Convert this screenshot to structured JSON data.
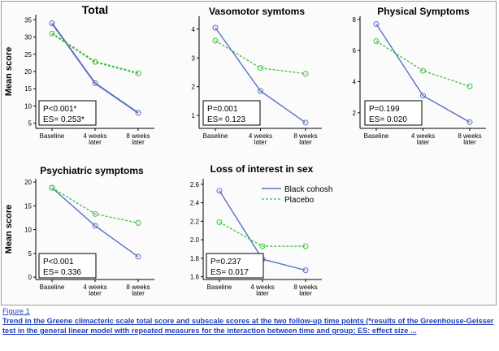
{
  "chart_data": [
    {
      "type": "line",
      "title": "Total",
      "ylabel": "Mean score",
      "categories": [
        "Baseline",
        "4 weeks later",
        "8 weeks later"
      ],
      "yticks": [
        5,
        10,
        15,
        20,
        25,
        30,
        35
      ],
      "ylim": [
        3.5,
        36.5
      ],
      "series": [
        {
          "name": "Black cohosh",
          "values": [
            34.0,
            16.6,
            8.0
          ]
        },
        {
          "name": "Placebo",
          "values": [
            31.0,
            22.8,
            19.5
          ]
        }
      ],
      "stats": [
        "P<0.001*",
        "ES= 0.253*"
      ]
    },
    {
      "type": "line",
      "title": "Vasomotor symtoms",
      "ylabel": "",
      "categories": [
        "Baseline",
        "4 weeks later",
        "8 weeks later"
      ],
      "yticks": [
        1,
        2,
        3,
        4
      ],
      "ylim": [
        0.55,
        4.45
      ],
      "series": [
        {
          "name": "Black cohosh",
          "values": [
            4.05,
            1.85,
            0.75
          ]
        },
        {
          "name": "Placebo",
          "values": [
            3.6,
            2.65,
            2.45
          ]
        }
      ],
      "stats": [
        "P=0.001",
        "ES= 0.123"
      ]
    },
    {
      "type": "line",
      "title": "Physical Symptoms",
      "ylabel": "",
      "categories": [
        "Baseline",
        "4 weeks later",
        "8 weeks later"
      ],
      "yticks": [
        2,
        4,
        6,
        8
      ],
      "ylim": [
        1.0,
        8.2
      ],
      "series": [
        {
          "name": "Black cohosh",
          "values": [
            7.7,
            3.1,
            1.4
          ]
        },
        {
          "name": "Placebo",
          "values": [
            6.6,
            4.7,
            3.7
          ]
        }
      ],
      "stats": [
        "P=0.199",
        "ES= 0.020"
      ]
    },
    {
      "type": "line",
      "title": "Psychiatric  symptoms",
      "ylabel": "Mean score",
      "categories": [
        "Baseline",
        "4 weeks later",
        "8 weeks later"
      ],
      "yticks": [
        0,
        5,
        10,
        15,
        20
      ],
      "ylim": [
        -0.5,
        20.7
      ],
      "series": [
        {
          "name": "Black cohosh",
          "values": [
            18.8,
            10.8,
            4.3
          ]
        },
        {
          "name": "Placebo",
          "values": [
            18.8,
            13.3,
            11.4
          ]
        }
      ],
      "stats": [
        "P<0.001",
        "ES= 0.336"
      ]
    },
    {
      "type": "line",
      "title": "Loss of interest in sex",
      "ylabel": "",
      "categories": [
        "Baseline",
        "4 weeks later",
        "8 weeks later"
      ],
      "yticks": [
        1.6,
        1.8,
        2.0,
        2.2,
        2.4,
        2.6
      ],
      "ytick_labels": [
        "1.6",
        "1.8",
        "2.0",
        "2.2",
        "2.4",
        "2.6"
      ],
      "ylim": [
        1.57,
        2.66
      ],
      "series": [
        {
          "name": "Black cohosh",
          "values": [
            2.53,
            1.79,
            1.67
          ]
        },
        {
          "name": "Placebo",
          "values": [
            2.19,
            1.93,
            1.93
          ]
        }
      ],
      "stats": [
        "P=0.237",
        "ES= 0.017"
      ]
    }
  ],
  "x_tick_lines": [
    [
      "Baseline"
    ],
    [
      "4 weeks",
      "later"
    ],
    [
      "8 weeks",
      "later"
    ]
  ],
  "legend": {
    "black_cohosh": "Black  cohosh",
    "placebo": "Placebo"
  },
  "colors": {
    "black_cohosh": "#5b6fc6",
    "placebo": "#3fbf3f",
    "caption": "#1f3fbf"
  },
  "caption": {
    "label": "Figure 1",
    "text": "Trend in the Greene climacteric scale total score and subscale scores at the two follow-up time points (*results of the Greenhouse-Geisser test in the general linear model with repeated measures for the interaction between time and group; ES: effect size ..."
  }
}
